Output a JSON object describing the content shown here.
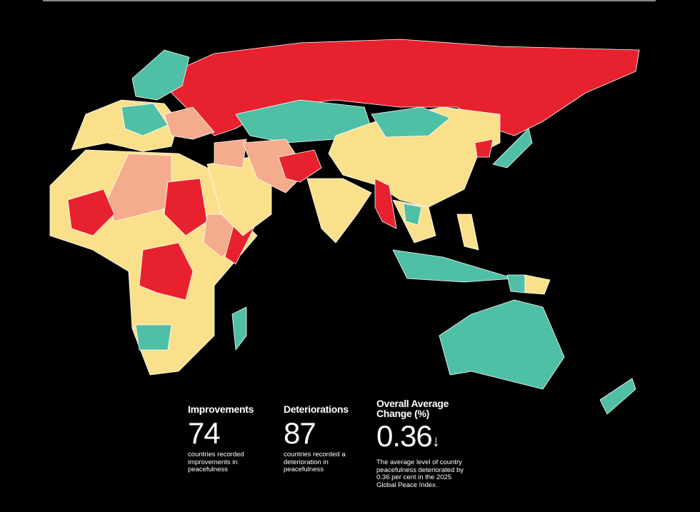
{
  "stats": [
    {
      "title": "Improvements",
      "value": "74",
      "description": "countries recorded improvements in peacefulness"
    },
    {
      "title": "Deteriorations",
      "value": "87",
      "description": "countries recorded a deterioration in peacefulness"
    },
    {
      "title": "Overall Average Change (%)",
      "value": "0.36",
      "arrow": "↓",
      "description": "The average level of country peacefulness deteriorated by 0.36 per cent in the 2025 Global Peace Index."
    }
  ]
}
